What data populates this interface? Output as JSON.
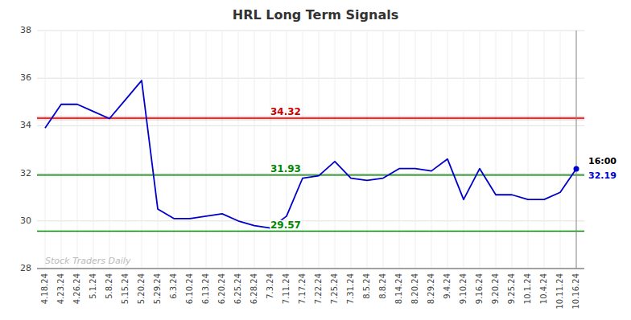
{
  "chart_data": {
    "type": "line",
    "title": "HRL Long Term Signals",
    "categories": [
      "4.18.24",
      "4.23.24",
      "4.26.24",
      "5.1.24",
      "5.8.24",
      "5.15.24",
      "5.20.24",
      "5.29.24",
      "6.3.24",
      "6.10.24",
      "6.13.24",
      "6.20.24",
      "6.25.24",
      "6.28.24",
      "7.3.24",
      "7.11.24",
      "7.17.24",
      "7.22.24",
      "7.25.24",
      "7.31.24",
      "8.5.24",
      "8.8.24",
      "8.14.24",
      "8.20.24",
      "8.29.24",
      "9.4.24",
      "9.10.24",
      "9.16.24",
      "9.20.24",
      "9.25.24",
      "10.1.24",
      "10.4.24",
      "10.11.24",
      "10.16.24"
    ],
    "values": [
      33.9,
      34.9,
      34.9,
      34.6,
      34.3,
      35.1,
      35.9,
      30.5,
      30.1,
      30.1,
      30.2,
      30.3,
      30.0,
      29.8,
      29.7,
      30.2,
      31.8,
      31.9,
      32.5,
      31.8,
      31.7,
      31.8,
      32.2,
      32.2,
      32.1,
      32.6,
      30.9,
      32.2,
      31.1,
      31.1,
      30.9,
      30.9,
      31.2,
      32.19
    ],
    "color": "#0000cc",
    "ylim": [
      28,
      38
    ],
    "yticks": [
      28,
      30,
      32,
      34,
      36,
      38
    ],
    "grid": true,
    "annotations": [
      {
        "text": "34.32",
        "y": 34.32,
        "color": "#cc0000"
      },
      {
        "text": "31.93",
        "y": 31.93,
        "color": "#008800"
      },
      {
        "text": "29.57",
        "y": 29.57,
        "color": "#008800"
      },
      {
        "text": "16:00",
        "x": "10.16.24",
        "color": "#000000"
      },
      {
        "text": "32.19",
        "x": "10.16.24",
        "color": "#0000cc"
      },
      {
        "text": "Stock Traders Daily",
        "color": "#bbbbbb"
      }
    ]
  }
}
